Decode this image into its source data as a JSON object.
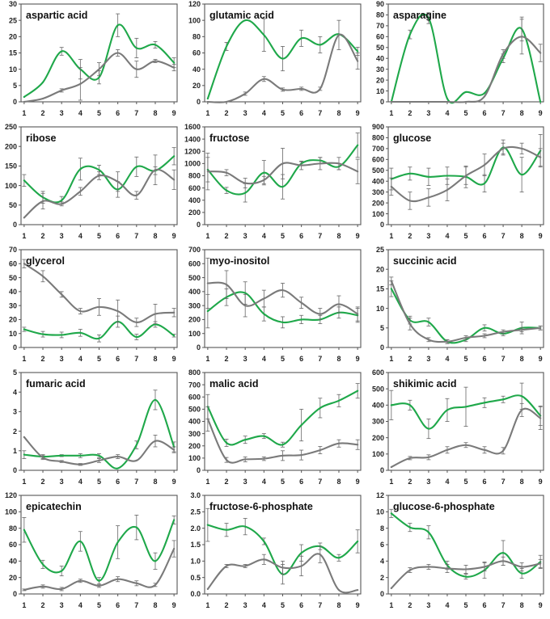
{
  "colors": {
    "green": "#1fa84a",
    "gray": "#7a7a7a",
    "frame": "#555555",
    "error": "#666666"
  },
  "chart_data": [
    {
      "type": "line",
      "title": "aspartic acid",
      "x": [
        1,
        2,
        3,
        4,
        5,
        6,
        7,
        8,
        9
      ],
      "ylim": [
        0,
        30
      ],
      "yticks": [
        "0",
        "5",
        "10",
        "15",
        "20",
        "25",
        "30"
      ],
      "series": [
        {
          "name": "green",
          "values": [
            1.5,
            6,
            15.5,
            10,
            7.5,
            23.5,
            16.5,
            17.5,
            12
          ],
          "errors": [
            0,
            0,
            1.2,
            3,
            2,
            3.5,
            3,
            1,
            1.5
          ]
        },
        {
          "name": "gray",
          "values": [
            0,
            1,
            3.5,
            5.5,
            10,
            15,
            10,
            12.5,
            10.5
          ],
          "errors": [
            0,
            0,
            0.5,
            5,
            2,
            1,
            2.5,
            0.5,
            1
          ]
        }
      ]
    },
    {
      "type": "line",
      "title": "glutamic acid",
      "x": [
        1,
        2,
        3,
        4,
        5,
        6,
        7,
        8,
        9
      ],
      "ylim": [
        0,
        120
      ],
      "yticks": [
        "0",
        "20",
        "40",
        "60",
        "80",
        "100",
        "120"
      ],
      "series": [
        {
          "name": "green",
          "values": [
            4,
            68,
            100,
            82,
            53,
            78,
            70,
            83,
            62
          ],
          "errors": [
            0,
            5,
            0,
            20,
            15,
            10,
            10,
            0,
            5
          ]
        },
        {
          "name": "gray",
          "values": [
            0,
            0,
            10,
            28,
            15,
            16,
            16,
            82,
            50
          ],
          "errors": [
            0,
            0,
            2,
            3,
            2,
            2,
            2,
            18,
            10
          ]
        }
      ]
    },
    {
      "type": "line",
      "title": "asparagine",
      "x": [
        1,
        2,
        3,
        4,
        5,
        6,
        7,
        8,
        9
      ],
      "ylim": [
        0,
        90
      ],
      "yticks": [
        "0",
        "10",
        "20",
        "30",
        "40",
        "50",
        "60",
        "70",
        "80",
        "90"
      ],
      "series": [
        {
          "name": "green",
          "values": [
            0,
            62,
            77,
            3,
            9,
            8,
            40,
            67,
            0
          ],
          "errors": [
            0,
            4,
            5,
            0,
            0,
            0,
            4,
            11,
            0
          ]
        },
        {
          "name": "gray",
          "values": [
            0,
            0,
            0,
            0,
            0,
            5,
            44,
            60,
            45
          ],
          "errors": [
            0,
            0,
            0,
            0,
            0,
            0,
            4,
            16,
            8
          ]
        }
      ]
    },
    {
      "type": "line",
      "title": "ribose",
      "x": [
        1,
        2,
        3,
        4,
        5,
        6,
        7,
        8,
        9
      ],
      "ylim": [
        0,
        250
      ],
      "yticks": [
        "0",
        "50",
        "100",
        "150",
        "200",
        "250"
      ],
      "series": [
        {
          "name": "green",
          "values": [
            113,
            70,
            62,
            142,
            140,
            90,
            148,
            138,
            175
          ],
          "errors": [
            15,
            15,
            10,
            28,
            12,
            20,
            25,
            10,
            22
          ]
        },
        {
          "name": "gray",
          "values": [
            18,
            60,
            53,
            85,
            125,
            110,
            75,
            140,
            115
          ],
          "errors": [
            0,
            20,
            5,
            10,
            10,
            25,
            10,
            38,
            25
          ]
        }
      ]
    },
    {
      "type": "line",
      "title": "fructose",
      "x": [
        1,
        2,
        3,
        4,
        5,
        6,
        7,
        8,
        9
      ],
      "ylim": [
        0,
        1600
      ],
      "yticks": [
        "0",
        "200",
        "400",
        "600",
        "800",
        "1000",
        "1200",
        "1400",
        "1600"
      ],
      "series": [
        {
          "name": "green",
          "values": [
            900,
            560,
            520,
            850,
            620,
            1000,
            1050,
            950,
            1300
          ],
          "errors": [
            200,
            50,
            150,
            200,
            200,
            30,
            50,
            50,
            200
          ]
        },
        {
          "name": "gray",
          "values": [
            870,
            850,
            680,
            730,
            1000,
            970,
            1000,
            1000,
            870
          ],
          "errors": [
            300,
            50,
            80,
            60,
            250,
            70,
            100,
            100,
            200
          ]
        }
      ]
    },
    {
      "type": "line",
      "title": "glucose",
      "x": [
        1,
        2,
        3,
        4,
        5,
        6,
        7,
        8,
        9
      ],
      "ylim": [
        0,
        900
      ],
      "yticks": [
        "0",
        "100",
        "200",
        "300",
        "400",
        "500",
        "600",
        "700",
        "800",
        "900"
      ],
      "series": [
        {
          "name": "green",
          "values": [
            420,
            470,
            440,
            450,
            440,
            380,
            710,
            460,
            680
          ],
          "errors": [
            100,
            60,
            80,
            80,
            100,
            80,
            70,
            160,
            150
          ]
        },
        {
          "name": "gray",
          "values": [
            350,
            220,
            250,
            320,
            450,
            550,
            700,
            700,
            620
          ],
          "errors": [
            80,
            80,
            80,
            100,
            80,
            100,
            50,
            50,
            80
          ]
        }
      ]
    },
    {
      "type": "line",
      "title": "glycerol",
      "x": [
        1,
        2,
        3,
        4,
        5,
        6,
        7,
        8,
        9
      ],
      "ylim": [
        0,
        70
      ],
      "yticks": [
        "0",
        "10",
        "20",
        "30",
        "40",
        "50",
        "60",
        "70"
      ],
      "series": [
        {
          "name": "green",
          "values": [
            13,
            9.5,
            9,
            10.5,
            6.5,
            18.5,
            7.5,
            16.5,
            8.5
          ],
          "errors": [
            1.5,
            2,
            2,
            2.5,
            2.5,
            4,
            2,
            2,
            1
          ]
        },
        {
          "name": "gray",
          "values": [
            60,
            51,
            38,
            26,
            29,
            26,
            18,
            24,
            25
          ],
          "errors": [
            3,
            4,
            2,
            2,
            6,
            8,
            3,
            7,
            3
          ]
        }
      ]
    },
    {
      "type": "line",
      "title": "myo-inositol",
      "x": [
        1,
        2,
        3,
        4,
        5,
        6,
        7,
        8,
        9
      ],
      "ylim": [
        0,
        700
      ],
      "yticks": [
        "0",
        "100",
        "200",
        "300",
        "400",
        "500",
        "600",
        "700"
      ],
      "series": [
        {
          "name": "green",
          "values": [
            260,
            360,
            390,
            240,
            180,
            200,
            200,
            250,
            230
          ],
          "errors": [
            120,
            60,
            80,
            50,
            40,
            30,
            30,
            40,
            50
          ]
        },
        {
          "name": "gray",
          "values": [
            460,
            450,
            300,
            350,
            410,
            320,
            240,
            310,
            240
          ],
          "errors": [
            180,
            100,
            80,
            60,
            50,
            40,
            40,
            60,
            50
          ]
        }
      ]
    },
    {
      "type": "line",
      "title": "succinic acid",
      "x": [
        1,
        2,
        3,
        4,
        5,
        6,
        7,
        8,
        9
      ],
      "ylim": [
        0,
        25
      ],
      "yticks": [
        "0",
        "5",
        "10",
        "15",
        "20",
        "25"
      ],
      "series": [
        {
          "name": "green",
          "values": [
            15,
            7,
            6.5,
            1.5,
            2,
            5,
            3.5,
            5,
            5
          ],
          "errors": [
            2,
            1,
            1,
            0.5,
            0.5,
            0.8,
            0.5,
            1.5,
            0.5
          ]
        },
        {
          "name": "gray",
          "values": [
            17,
            6,
            2,
            1.5,
            2.5,
            3,
            4,
            4.5,
            5
          ],
          "errors": [
            1,
            1.5,
            0.5,
            0.5,
            0.5,
            0.5,
            0.5,
            0.5,
            0.5
          ]
        }
      ]
    },
    {
      "type": "line",
      "title": "fumaric acid",
      "x": [
        1,
        2,
        3,
        4,
        5,
        6,
        7,
        8,
        9
      ],
      "ylim": [
        0,
        5
      ],
      "yticks": [
        "0",
        "1",
        "2",
        "3",
        "4",
        "5"
      ],
      "series": [
        {
          "name": "green",
          "values": [
            0.8,
            0.7,
            0.75,
            0.75,
            0.75,
            0.1,
            1.3,
            3.6,
            1.2
          ],
          "errors": [
            0.2,
            0.1,
            0.05,
            0.1,
            0.1,
            0,
            0.2,
            0.5,
            0.25
          ]
        },
        {
          "name": "gray",
          "values": [
            1.7,
            0.65,
            0.45,
            0.3,
            0.5,
            0.7,
            0.5,
            1.5,
            1.05
          ],
          "errors": [
            0,
            0.1,
            0.05,
            0.05,
            0.1,
            0.1,
            0,
            0.3,
            0.15
          ]
        }
      ]
    },
    {
      "type": "line",
      "title": "malic acid",
      "x": [
        1,
        2,
        3,
        4,
        5,
        6,
        7,
        8,
        9
      ],
      "ylim": [
        0,
        800
      ],
      "yticks": [
        "0",
        "100",
        "200",
        "300",
        "400",
        "500",
        "600",
        "700",
        "800"
      ],
      "series": [
        {
          "name": "green",
          "values": [
            520,
            225,
            250,
            280,
            210,
            370,
            510,
            570,
            650
          ],
          "errors": [
            100,
            30,
            30,
            20,
            20,
            130,
            80,
            50,
            60
          ]
        },
        {
          "name": "gray",
          "values": [
            420,
            85,
            90,
            95,
            120,
            125,
            165,
            220,
            210
          ],
          "errors": [
            100,
            20,
            20,
            15,
            40,
            40,
            30,
            30,
            40
          ]
        }
      ]
    },
    {
      "type": "line",
      "title": "shikimic acid",
      "x": [
        1,
        2,
        3,
        4,
        5,
        6,
        7,
        8,
        9
      ],
      "ylim": [
        0,
        600
      ],
      "yticks": [
        "0",
        "100",
        "200",
        "300",
        "400",
        "500",
        "600"
      ],
      "series": [
        {
          "name": "green",
          "values": [
            400,
            400,
            255,
            370,
            390,
            415,
            435,
            455,
            335
          ],
          "errors": [
            90,
            30,
            60,
            70,
            120,
            30,
            20,
            80,
            60
          ]
        },
        {
          "name": "gray",
          "values": [
            20,
            75,
            80,
            125,
            155,
            125,
            120,
            370,
            320
          ],
          "errors": [
            0,
            10,
            15,
            20,
            15,
            20,
            20,
            40,
            70
          ]
        }
      ]
    },
    {
      "type": "line",
      "title": "epicatechin",
      "x": [
        1,
        2,
        3,
        4,
        5,
        6,
        7,
        8,
        9
      ],
      "ylim": [
        0,
        120
      ],
      "yticks": [
        "0",
        "20",
        "40",
        "60",
        "80",
        "100",
        "120"
      ],
      "series": [
        {
          "name": "green",
          "values": [
            78,
            36,
            28,
            64,
            16,
            63,
            81,
            40,
            90
          ],
          "errors": [
            15,
            5,
            6,
            12,
            4,
            20,
            15,
            10,
            5
          ]
        },
        {
          "name": "gray",
          "values": [
            5,
            9,
            6,
            16,
            10,
            18,
            13,
            11,
            55
          ],
          "errors": [
            1,
            2,
            2,
            2,
            2,
            3,
            3,
            2,
            10
          ]
        }
      ]
    },
    {
      "type": "line",
      "title": "fructose-6-phosphate",
      "x": [
        1,
        2,
        3,
        4,
        5,
        6,
        7,
        8,
        9
      ],
      "ylim": [
        0,
        3
      ],
      "yticks": [
        "0.0",
        "0.5",
        "1.0",
        "1.5",
        "2.0",
        "2.5",
        "3.0"
      ],
      "series": [
        {
          "name": "green",
          "values": [
            2.1,
            1.95,
            2.05,
            1.6,
            0.6,
            1.25,
            1.45,
            1.1,
            1.6
          ],
          "errors": [
            0.5,
            0.2,
            0.25,
            0.1,
            0.3,
            0.25,
            0.1,
            0.1,
            0.35
          ]
        },
        {
          "name": "gray",
          "values": [
            0.15,
            0.85,
            0.85,
            1.05,
            0.8,
            0.85,
            1.2,
            0.12,
            0.12
          ],
          "errors": [
            0,
            0.05,
            0.05,
            0.15,
            0.2,
            0.3,
            0.25,
            0,
            0
          ]
        }
      ]
    },
    {
      "type": "line",
      "title": "glucose-6-phosphate",
      "x": [
        1,
        2,
        3,
        4,
        5,
        6,
        7,
        8,
        9
      ],
      "ylim": [
        0,
        12
      ],
      "yticks": [
        "0",
        "2",
        "4",
        "6",
        "8",
        "10",
        "12"
      ],
      "series": [
        {
          "name": "green",
          "values": [
            9.8,
            8.1,
            7.5,
            3.5,
            2.1,
            2.9,
            5,
            2.5,
            3.9
          ],
          "errors": [
            0.5,
            0.5,
            0.8,
            0.5,
            0.3,
            1,
            1.5,
            0.6,
            0.8
          ]
        },
        {
          "name": "gray",
          "values": [
            0.7,
            2.9,
            3.3,
            3.1,
            3,
            3.3,
            4,
            3.3,
            3.7
          ],
          "errors": [
            0,
            0.3,
            0.3,
            0.5,
            0.5,
            0.5,
            0.5,
            0.5,
            0.5
          ]
        }
      ]
    }
  ]
}
